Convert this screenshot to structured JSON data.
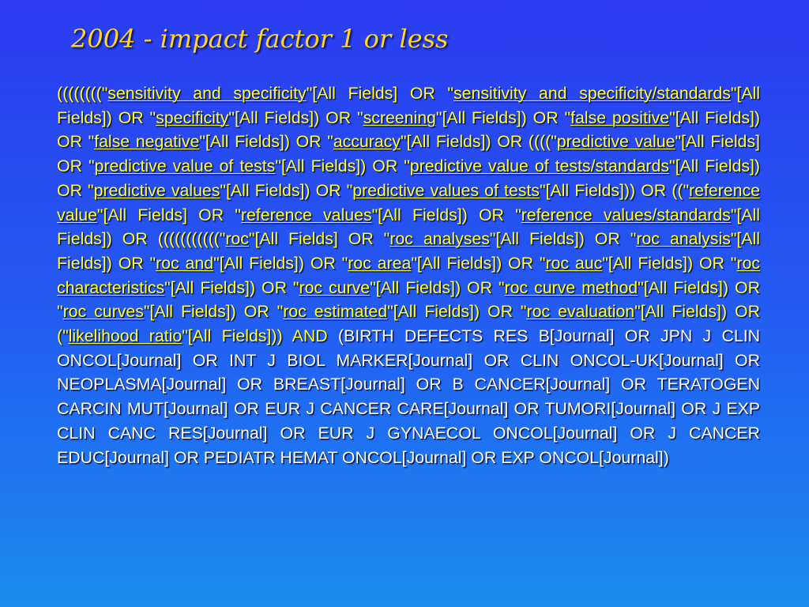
{
  "slide": {
    "title": "2004 -  impact factor 1 or less",
    "query_segments": [
      {
        "text": "((((((((\""
      },
      {
        "text": "sensitivity and specificity",
        "link": true
      },
      {
        "text": "\"[All Fields] OR \""
      },
      {
        "text": "sensitivity and specificity/standards",
        "link": true
      },
      {
        "text": "\"[All Fields]) OR \""
      },
      {
        "text": "specificity",
        "link": true
      },
      {
        "text": "\"[All Fields]) OR \""
      },
      {
        "text": "screening",
        "link": true
      },
      {
        "text": "\"[All Fields]) OR \""
      },
      {
        "text": "false positive",
        "link": true
      },
      {
        "text": "\"[All Fields]) OR \""
      },
      {
        "text": "false negative",
        "link": true
      },
      {
        "text": "\"[All Fields]) OR \""
      },
      {
        "text": "accuracy",
        "link": true
      },
      {
        "text": "\"[All Fields]) OR ((((\""
      },
      {
        "text": "predictive value",
        "link": true
      },
      {
        "text": "\"[All Fields] OR \""
      },
      {
        "text": "predictive value of tests",
        "link": true
      },
      {
        "text": "\"[All Fields]) OR \""
      },
      {
        "text": "predictive value of tests/standards",
        "link": true
      },
      {
        "text": "\"[All Fields]) OR \""
      },
      {
        "text": "predictive values",
        "link": true
      },
      {
        "text": "\"[All Fields]) OR \""
      },
      {
        "text": "predictive values of tests",
        "link": true
      },
      {
        "text": "\"[All Fields])) OR ((\""
      },
      {
        "text": "reference value",
        "link": true
      },
      {
        "text": "\"[All Fields] OR \""
      },
      {
        "text": "reference values",
        "link": true
      },
      {
        "text": "\"[All Fields]) OR \""
      },
      {
        "text": "reference values/standards",
        "link": true
      },
      {
        "text": "\"[All Fields]) OR (((((((((((\""
      },
      {
        "text": "roc",
        "link": true
      },
      {
        "text": "\"[All Fields] OR \""
      },
      {
        "text": "roc analyses",
        "link": true
      },
      {
        "text": "\"[All Fields]) OR \""
      },
      {
        "text": "roc analysis",
        "link": true
      },
      {
        "text": "\"[All Fields]) OR \""
      },
      {
        "text": "roc and",
        "link": true
      },
      {
        "text": "\"[All Fields]) OR \""
      },
      {
        "text": "roc area",
        "link": true
      },
      {
        "text": "\"[All Fields]) OR \""
      },
      {
        "text": "roc auc",
        "link": true
      },
      {
        "text": "\"[All Fields]) OR \""
      },
      {
        "text": "roc characteristics",
        "link": true
      },
      {
        "text": "\"[All Fields]) OR \""
      },
      {
        "text": "roc curve",
        "link": true
      },
      {
        "text": "\"[All Fields]) OR \""
      },
      {
        "text": "roc curve method",
        "link": true
      },
      {
        "text": "\"[All Fields]) OR \""
      },
      {
        "text": "roc curves",
        "link": true
      },
      {
        "text": "\"[All Fields]) OR \""
      },
      {
        "text": "roc estimated",
        "link": true
      },
      {
        "text": "\"[All Fields]) OR \""
      },
      {
        "text": "roc evaluation",
        "link": true
      },
      {
        "text": "\"[All Fields]) OR (\""
      },
      {
        "text": "likelihood ratio",
        "link": true
      },
      {
        "text": "\"[All Fields])) AND"
      }
    ],
    "journal_text": "(BIRTH DEFECTS RES B[Journal] OR JPN J CLIN ONCOL[Journal] OR INT J BIOL MARKER[Journal] OR CLIN ONCOL-UK[Journal] OR NEOPLASMA[Journal] OR BREAST[Journal] OR B CANCER[Journal] OR TERATOGEN CARCIN MUT[Journal] OR EUR J CANCER CARE[Journal] OR TUMORI[Journal] OR J EXP CLIN CANC RES[Journal] OR EUR J GYNAECOL ONCOL[Journal] OR J CANCER EDUC[Journal] OR PEDIATR HEMAT ONCOL[Journal] OR EXP ONCOL[Journal])",
    "colors": {
      "title": "#ffd51e",
      "query": "#ffff2a",
      "journals": "#ffffff"
    }
  }
}
